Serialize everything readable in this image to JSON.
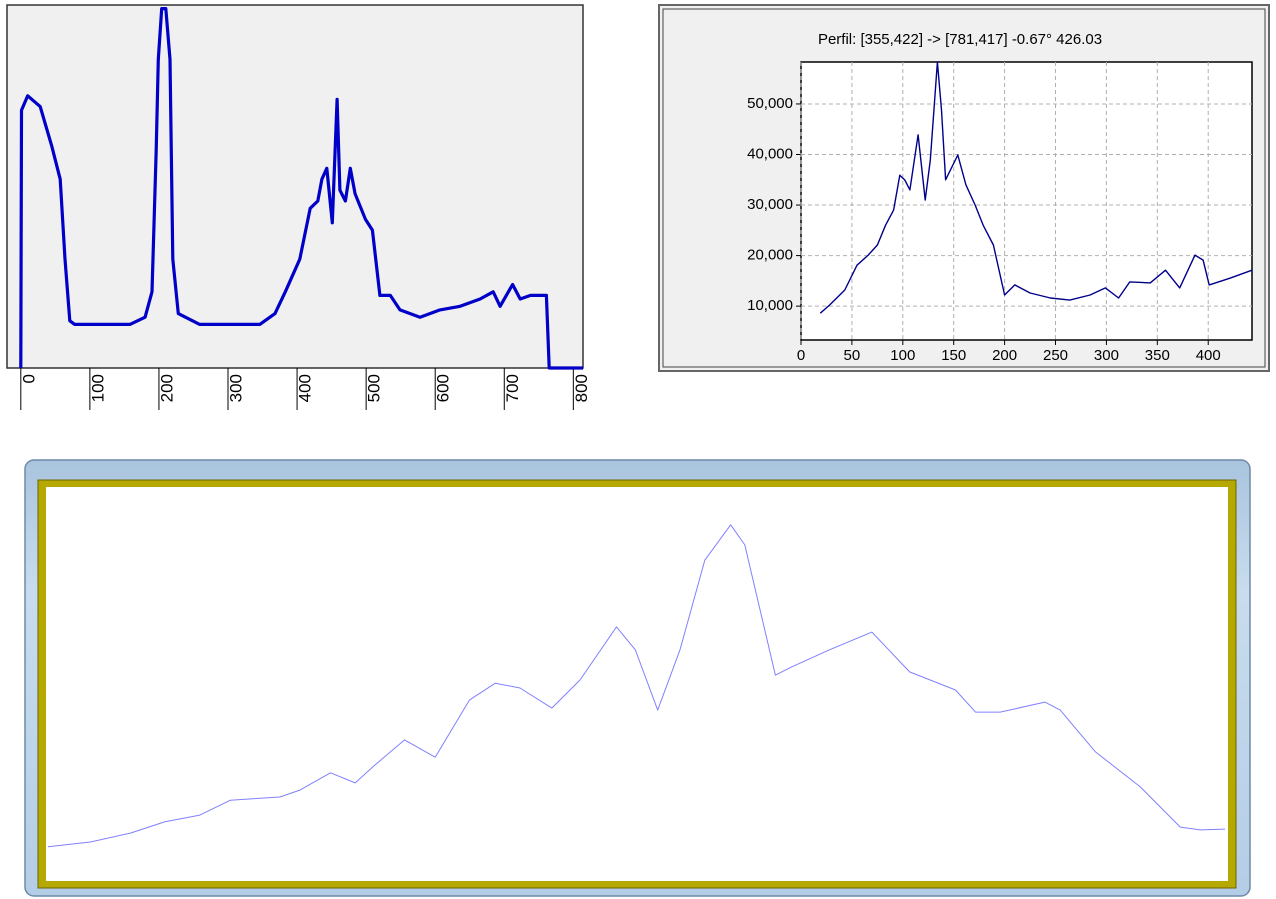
{
  "chart_data": [
    {
      "type": "line",
      "color": "#0000c8",
      "x": [
        0,
        1,
        10,
        28,
        45,
        57,
        64,
        71,
        78,
        158,
        180,
        190,
        196,
        199,
        204,
        210,
        216,
        220,
        228,
        259,
        346,
        368,
        383,
        404,
        419,
        430,
        436,
        443,
        451,
        458,
        462,
        470,
        477,
        484,
        499,
        509,
        520,
        535,
        549,
        578,
        607,
        636,
        665,
        684,
        694,
        712,
        723,
        738,
        761,
        765,
        814
      ],
      "values": [
        0,
        71,
        75,
        72,
        61,
        52,
        30,
        13,
        12,
        12,
        14,
        21,
        60,
        85,
        99,
        99,
        85,
        30,
        15,
        12,
        12,
        15,
        21,
        30,
        44,
        46,
        52,
        55,
        40,
        74,
        49,
        46,
        55,
        48,
        41,
        38,
        20,
        20,
        16,
        14,
        16,
        17,
        19,
        21,
        17,
        23,
        19,
        20,
        20,
        0,
        0
      ],
      "xlim": [
        -20,
        814
      ],
      "ylim": [
        0,
        100
      ],
      "xticks": [
        0,
        100,
        200,
        300,
        400,
        500,
        600,
        700,
        800
      ]
    },
    {
      "type": "line",
      "title": "Perfil: [355,422] -> [781,417] -0.67° 426.03",
      "color": "#00008b",
      "grid": true,
      "x": [
        19,
        28,
        43,
        55,
        66,
        75,
        83,
        91,
        97,
        102,
        107,
        115,
        122,
        127,
        134,
        138,
        142,
        154,
        162,
        171,
        179,
        189,
        200,
        210,
        225,
        245,
        264,
        284,
        299,
        312,
        323,
        343,
        358,
        372,
        387,
        395,
        401,
        421,
        443
      ],
      "values": [
        8600,
        10200,
        13200,
        18100,
        20100,
        22100,
        26000,
        29000,
        35900,
        34950,
        33000,
        43900,
        31000,
        38900,
        58300,
        48800,
        35000,
        39900,
        34000,
        30000,
        26000,
        22100,
        12200,
        14200,
        12600,
        11600,
        11200,
        12200,
        13600,
        11600,
        14800,
        14600,
        17100,
        13600,
        20100,
        19100,
        14200,
        15500,
        17100
      ],
      "xlim": [
        0,
        443
      ],
      "ylim": [
        3300,
        58300
      ],
      "xticks": [
        0,
        50,
        100,
        150,
        200,
        250,
        300,
        350,
        400
      ],
      "yticks": [
        {
          "value": 10000,
          "label": "10,000"
        },
        {
          "value": 20000,
          "label": "20,000"
        },
        {
          "value": 30000,
          "label": "30,000"
        },
        {
          "value": 40000,
          "label": "40,000"
        },
        {
          "value": 50000,
          "label": "50,000"
        }
      ]
    },
    {
      "type": "line",
      "color": "#8080ff",
      "x": [
        0,
        3.6,
        7,
        9.9,
        12.9,
        15.5,
        19.7,
        21.4,
        24,
        26.1,
        27.8,
        30.3,
        32.9,
        35.8,
        38,
        40.1,
        42.8,
        45.2,
        48.3,
        49.9,
        51.8,
        53.7,
        55.8,
        58,
        59.2,
        61.8,
        63,
        66.4,
        70,
        73.2,
        77.1,
        78.8,
        80.9,
        84.7,
        86,
        89,
        92.8,
        96.2,
        97.9,
        100
      ],
      "values": [
        9.5,
        10.7,
        12.9,
        15.7,
        17.4,
        21.1,
        21.9,
        23.6,
        27.9,
        25.4,
        29.9,
        36.1,
        31.8,
        46,
        50.2,
        49,
        44,
        51,
        64.2,
        58.5,
        43.5,
        58.5,
        80.8,
        89.6,
        84.6,
        52.2,
        54,
        58.5,
        62.9,
        53,
        48.5,
        43,
        43,
        45.5,
        43.5,
        33.1,
        24.4,
        14.4,
        13.7,
        13.9
      ],
      "xlim": [
        0,
        100
      ],
      "ylim": [
        0,
        100
      ]
    }
  ]
}
